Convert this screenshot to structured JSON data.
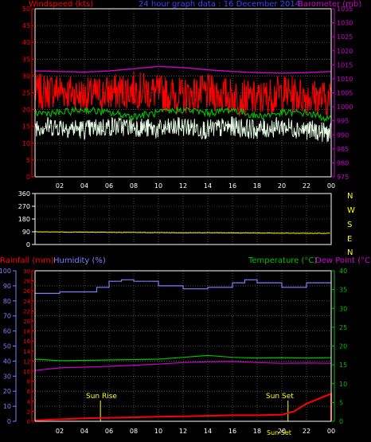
{
  "header": {
    "left_label": "Windspeed (kts)",
    "center_label": "24 hour graph data : 16 December 2014",
    "right_label": "Barometer (mb)"
  },
  "colors": {
    "background": "#000000",
    "grid": "#7f7f7f",
    "windspeed": "#ff0000",
    "gust_band": "#ff0000",
    "wind_avg": "#00c000",
    "wind_white": "#e8ffe8",
    "barometer": "#d000d0",
    "direction": "#ffff00",
    "compass": "#ffff00",
    "rainfall": "#ff0000",
    "humidity": "#7f7fff",
    "temperature": "#00c000",
    "dewpoint": "#d000d0",
    "sun": "#ffff00",
    "axis_left_top": "#ff0000",
    "axis_right_top": "#d000d0",
    "axis_left_mid": "#ffffff",
    "axis_left_bottom_outer": "#7f7fff",
    "axis_left_bottom_inner": "#ff0000",
    "axis_right_bottom": "#00c000"
  },
  "compass_labels": [
    "N",
    "W",
    "S",
    "E",
    "N"
  ],
  "bottom_header": {
    "rainfall_label": "Rainfall (mm)",
    "humidity_label": "Humidity (%)",
    "temperature_label": "Temperature (°C)",
    "dewpoint_label": "Dew Point (°C)"
  },
  "sun": {
    "rise_label": "Sun Rise",
    "set_label": "Sun Set",
    "set_label_axis": "Sun Set"
  },
  "x_ticks": [
    "02",
    "04",
    "06",
    "08",
    "10",
    "12",
    "14",
    "16",
    "18",
    "20",
    "22",
    "00"
  ],
  "chart_data": [
    {
      "type": "line",
      "title": "24 hour graph data : 16 December 2014",
      "x_unit": "hour",
      "xlim": [
        0,
        24
      ],
      "x_tick_labels": [
        "02",
        "04",
        "06",
        "08",
        "10",
        "12",
        "14",
        "16",
        "18",
        "20",
        "22",
        "00"
      ],
      "ylabel_left": "Windspeed (kts)",
      "ylim_left": [
        0,
        50
      ],
      "yticks_left": [
        0,
        5,
        10,
        15,
        20,
        25,
        30,
        35,
        40,
        45,
        50
      ],
      "ylabel_right": "Barometer (mb)",
      "ylim_right": [
        975,
        1035
      ],
      "yticks_right": [
        975,
        980,
        985,
        990,
        995,
        1000,
        1005,
        1010,
        1015,
        1020,
        1025,
        1030,
        1035
      ],
      "grid": true,
      "series": [
        {
          "name": "Windspeed (kts)",
          "axis": "left",
          "x": [
            0,
            2,
            4,
            6,
            8,
            10,
            12,
            14,
            16,
            18,
            20,
            22,
            24
          ],
          "values": [
            25,
            26,
            24,
            25,
            26,
            25,
            24,
            25,
            24,
            23,
            25,
            24,
            23
          ]
        },
        {
          "axis": "left",
          "x": [
            0,
            2,
            4,
            6,
            8,
            10,
            12,
            14,
            16,
            18,
            20,
            22,
            24
          ],
          "values": [
            19,
            19,
            20,
            19,
            18,
            19,
            20,
            19,
            20,
            18,
            19,
            19,
            17
          ]
        },
        {
          "axis": "left",
          "x": [
            0,
            2,
            4,
            6,
            8,
            10,
            12,
            14,
            16,
            18,
            20,
            22,
            24
          ],
          "values": [
            15,
            15,
            14,
            15,
            15,
            14,
            15,
            14,
            15,
            14,
            15,
            14,
            13
          ]
        },
        {
          "name": "Barometer (mb)",
          "axis": "right",
          "x": [
            0,
            2,
            4,
            6,
            8,
            10,
            12,
            14,
            16,
            18,
            20,
            22,
            24
          ],
          "values": [
            1012.8,
            1012.6,
            1012.4,
            1012.8,
            1013.6,
            1014.4,
            1014.0,
            1013.2,
            1012.6,
            1012.2,
            1012.0,
            1012.2,
            1012.6
          ]
        }
      ]
    },
    {
      "type": "line",
      "xlim": [
        0,
        24
      ],
      "ylim": [
        0,
        360
      ],
      "yticks": [
        0,
        90,
        180,
        270,
        360
      ],
      "right_labels": [
        "N",
        "W",
        "S",
        "E",
        "N"
      ],
      "grid": true,
      "series": [
        {
          "axis": "left",
          "x": [
            0,
            2,
            4,
            6,
            8,
            10,
            12,
            14,
            16,
            18,
            20,
            22,
            24
          ],
          "values": [
            90,
            88,
            87,
            86,
            85,
            84,
            83,
            83,
            82,
            81,
            80,
            79,
            79
          ]
        }
      ]
    },
    {
      "type": "line",
      "xlim": [
        0,
        24
      ],
      "x_tick_labels": [
        "02",
        "04",
        "06",
        "08",
        "10",
        "12",
        "14",
        "16",
        "18",
        "20",
        "22",
        "00"
      ],
      "ylabel_left_outer": "Rainfall (mm)",
      "ylabel_left_inner": "Humidity (%)",
      "ylabel_right": "Temperature (°C)",
      "ylabel_right_2": "Dew Point (°C)",
      "ylim_humidity": [
        0,
        100
      ],
      "yticks_humidity": [
        0,
        10,
        20,
        30,
        40,
        50,
        60,
        70,
        80,
        90,
        100
      ],
      "ylim_rainfall": [
        0,
        30
      ],
      "yticks_rainfall": [
        0,
        2,
        4,
        6,
        8,
        10,
        12,
        14,
        16,
        18,
        20,
        22,
        24,
        26,
        28,
        30
      ],
      "ylim_temperature": [
        0,
        40
      ],
      "yticks_temperature": [
        0,
        5,
        10,
        15,
        20,
        25,
        30,
        35,
        40
      ],
      "grid": true,
      "annotations": [
        {
          "text": "Sun Rise",
          "x": 5.3
        },
        {
          "text": "Sun Set",
          "x": 20.5
        }
      ],
      "series": [
        {
          "name": "Humidity (%)",
          "axis": "humidity",
          "x": [
            0,
            2,
            4,
            5,
            6,
            7,
            8,
            10,
            12,
            14,
            16,
            17,
            18,
            20,
            22,
            24
          ],
          "values": [
            85,
            86,
            86,
            89,
            93,
            94,
            93,
            90,
            88,
            89,
            92,
            94,
            92,
            89,
            92,
            93
          ]
        },
        {
          "name": "Temperature (°C)",
          "axis": "temperature",
          "x": [
            0,
            2,
            4,
            6,
            8,
            10,
            12,
            14,
            16,
            18,
            20,
            22,
            24
          ],
          "values": [
            16.5,
            16.1,
            16.2,
            16.3,
            16.4,
            16.5,
            17.0,
            17.5,
            17.0,
            16.8,
            16.9,
            16.8,
            16.9
          ]
        },
        {
          "name": "Dew Point (°C)",
          "axis": "temperature",
          "x": [
            0,
            2,
            4,
            6,
            8,
            10,
            12,
            14,
            16,
            18,
            20,
            22,
            24
          ],
          "values": [
            13.5,
            14.2,
            14.4,
            14.6,
            14.9,
            15.2,
            15.6,
            15.8,
            15.9,
            15.6,
            15.4,
            15.5,
            15.4
          ]
        },
        {
          "name": "Rainfall (mm)",
          "axis": "rainfall",
          "x": [
            0,
            2,
            4,
            6,
            8,
            10,
            12,
            14,
            16,
            18,
            20,
            21,
            22,
            23,
            24
          ],
          "values": [
            0.2,
            0.4,
            0.6,
            0.7,
            0.8,
            0.9,
            1.0,
            1.1,
            1.2,
            1.2,
            1.3,
            2.0,
            3.5,
            4.5,
            5.5
          ]
        }
      ]
    }
  ]
}
